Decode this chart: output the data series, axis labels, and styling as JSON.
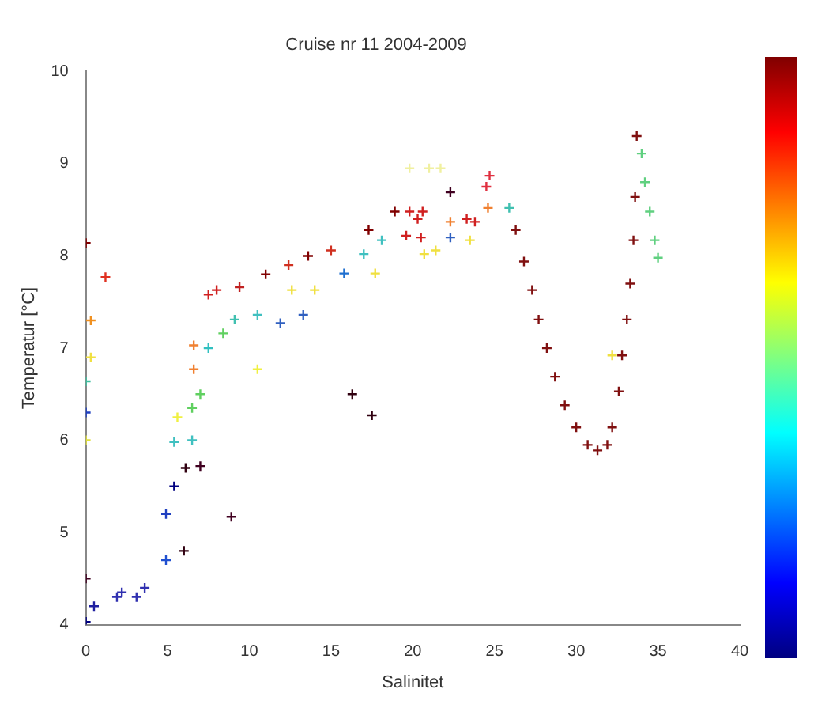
{
  "chart_data": {
    "type": "scatter",
    "title": "Cruise nr 11 2004-2009",
    "xlabel": "Salinitet",
    "ylabel": "Temperatur [°C]",
    "xlim": [
      0,
      40
    ],
    "xticks": [
      0,
      5,
      10,
      15,
      20,
      25,
      30,
      35,
      40
    ],
    "ylim": [
      4,
      10
    ],
    "yticks": [
      4,
      5,
      6,
      7,
      8,
      9,
      10
    ],
    "grid": false,
    "marker": "cross",
    "x": [
      0,
      1.2,
      0.3,
      0.3,
      0,
      0,
      0,
      0,
      0.5,
      0,
      1.9,
      2.2,
      3.1,
      3.6,
      4.9,
      4.9,
      5.4,
      6,
      6.1,
      8.9,
      16.3,
      17.5,
      6.6,
      7.5,
      8,
      9.4,
      11,
      12.4,
      13.6,
      15,
      17.3,
      18.9,
      7.5,
      9.1,
      10.5,
      11.9,
      13.3,
      15.8,
      17,
      18.1,
      8.4,
      10.5,
      12.6,
      14,
      17.7,
      6.6,
      5.6,
      6.5,
      7,
      5.4,
      6.5,
      7,
      24.7,
      24.5,
      22.3,
      19.8,
      20.6,
      20.3,
      22.3,
      23.3,
      23.8,
      24.6,
      19.6,
      20.5,
      22.3,
      20.7,
      21.4,
      23.5,
      19.8,
      21,
      21.7,
      25.9,
      26.3,
      26.8,
      27.3,
      27.7,
      28.2,
      28.7,
      29.3,
      30,
      30.7,
      31.3,
      31.9,
      32.2,
      32.6,
      32.8,
      33.1,
      33.3,
      33.5,
      33.6,
      33.7,
      32.2,
      34,
      34.2,
      34.5,
      34.8,
      35
    ],
    "values": [
      8.14,
      7.77,
      7.3,
      6.9,
      6.64,
      6.3,
      6.0,
      4.5,
      4.2,
      4.03,
      4.3,
      4.35,
      4.3,
      4.4,
      5.2,
      4.7,
      5.5,
      4.8,
      5.7,
      5.17,
      6.5,
      6.27,
      7.03,
      7.58,
      7.63,
      7.66,
      7.8,
      7.9,
      8.0,
      8.06,
      8.28,
      8.48,
      7.0,
      7.31,
      7.36,
      7.27,
      7.36,
      7.81,
      8.02,
      8.17,
      7.16,
      6.77,
      7.63,
      7.63,
      7.81,
      6.77,
      6.25,
      6.35,
      6.5,
      5.98,
      6.0,
      5.72,
      8.87,
      8.75,
      8.69,
      8.48,
      8.48,
      8.4,
      8.37,
      8.4,
      8.37,
      8.52,
      8.22,
      8.2,
      8.2,
      8.02,
      8.06,
      8.17,
      8.95,
      8.95,
      8.95,
      8.52,
      8.28,
      7.94,
      7.63,
      7.31,
      7.0,
      6.69,
      6.38,
      6.14,
      5.95,
      5.89,
      5.95,
      6.14,
      6.53,
      6.92,
      7.31,
      7.7,
      8.17,
      8.64,
      9.3,
      6.92,
      9.11,
      8.8,
      8.48,
      8.17,
      7.98
    ],
    "colors": [
      "#800000",
      "#e03020",
      "#f09020",
      "#f0e040",
      "#40c0a0",
      "#2040c0",
      "#e0e040",
      "#400020",
      "#2020a0",
      "#000080",
      "#3030b0",
      "#3030b0",
      "#3030b0",
      "#3030b0",
      "#2040c0",
      "#2050d0",
      "#000080",
      "#300010",
      "#300010",
      "#400020",
      "#300010",
      "#300010",
      "#f08030",
      "#d02020",
      "#d02020",
      "#c02020",
      "#800000",
      "#d03020",
      "#800000",
      "#d03020",
      "#800000",
      "#800000",
      "#30c0c0",
      "#40c0b0",
      "#40c0c0",
      "#3060c0",
      "#3060c0",
      "#2070d0",
      "#40c0c0",
      "#40c0c0",
      "#60d060",
      "#f0f040",
      "#f0e040",
      "#f0e040",
      "#f0e040",
      "#f08030",
      "#f0f040",
      "#60d060",
      "#60d060",
      "#40c0c0",
      "#40c0c0",
      "#400020",
      "#e03040",
      "#e03040",
      "#400020",
      "#d02020",
      "#d02020",
      "#d02020",
      "#f08030",
      "#d02020",
      "#d02020",
      "#f08030",
      "#d02020",
      "#d02020",
      "#3060c0",
      "#f0e040",
      "#f0e040",
      "#f0e040",
      "#f0f0a0",
      "#f0f0a0",
      "#f0f0a0",
      "#40c0b0",
      "#801010",
      "#801010",
      "#801010",
      "#801010",
      "#801010",
      "#801010",
      "#801010",
      "#801010",
      "#801010",
      "#801010",
      "#801010",
      "#801010",
      "#801010",
      "#801010",
      "#801010",
      "#801010",
      "#801010",
      "#801010",
      "#801010",
      "#f0e040",
      "#60d080",
      "#60d080",
      "#60d080",
      "#60d080",
      "#60d080"
    ]
  }
}
